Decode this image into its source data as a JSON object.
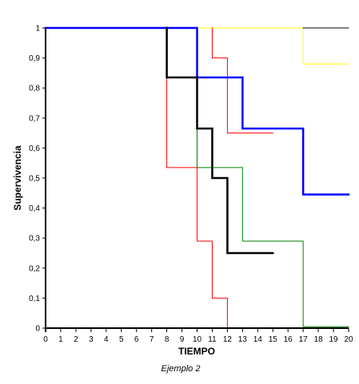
{
  "chart_data": {
    "type": "line",
    "step": true,
    "xlabel": "TIEMPO",
    "ylabel": "Supervivencia",
    "caption": "Ejemplo 2",
    "xlim": [
      0,
      20
    ],
    "ylim": [
      0,
      1
    ],
    "xticks": [
      0,
      1,
      2,
      3,
      4,
      5,
      6,
      7,
      8,
      9,
      10,
      11,
      12,
      13,
      14,
      15,
      16,
      17,
      18,
      19,
      20
    ],
    "yticks": [
      {
        "value": 0,
        "label": "0"
      },
      {
        "value": 0.1,
        "label": "0,1"
      },
      {
        "value": 0.2,
        "label": "0,2"
      },
      {
        "value": 0.3,
        "label": "0,3"
      },
      {
        "value": 0.4,
        "label": "0,4"
      },
      {
        "value": 0.5,
        "label": "0,5"
      },
      {
        "value": 0.6,
        "label": "0,6"
      },
      {
        "value": 0.7,
        "label": "0,7"
      },
      {
        "value": 0.8,
        "label": "0,8"
      },
      {
        "value": 0.9,
        "label": "0,9"
      },
      {
        "value": 1,
        "label": "1"
      }
    ],
    "grid": false,
    "legend": "none",
    "series": [
      {
        "color": "#ffff00",
        "width": 1,
        "points": [
          [
            0,
            1
          ],
          [
            17,
            1
          ],
          [
            17,
            0.88
          ],
          [
            20,
            0.88
          ]
        ]
      },
      {
        "color": "#000000",
        "width": 1,
        "points": [
          [
            17,
            1
          ],
          [
            20,
            1
          ]
        ]
      },
      {
        "color": "#008000",
        "width": 1,
        "points": [
          [
            8,
            1
          ],
          [
            10,
            1
          ],
          [
            10,
            0.535
          ],
          [
            13,
            0.535
          ],
          [
            13,
            0.29
          ],
          [
            17,
            0.29
          ],
          [
            17,
            0.005
          ],
          [
            20,
            0.005
          ]
        ]
      },
      {
        "color": "#ff0000",
        "width": 1,
        "points": [
          [
            8,
            1
          ],
          [
            8,
            0.535
          ],
          [
            10,
            0.535
          ],
          [
            10,
            0.29
          ],
          [
            11,
            0.29
          ],
          [
            11,
            0.1
          ],
          [
            12,
            0.1
          ],
          [
            12,
            0
          ],
          [
            15,
            0
          ]
        ]
      },
      {
        "color": "#ff0000",
        "width": 1,
        "points": [
          [
            11,
            1
          ],
          [
            11,
            0.9
          ],
          [
            12,
            0.9
          ],
          [
            12,
            0.65
          ],
          [
            15,
            0.65
          ]
        ]
      },
      {
        "color": "#0000ff",
        "width": 2.5,
        "points": [
          [
            0,
            1
          ],
          [
            10,
            1
          ],
          [
            10,
            0.835
          ],
          [
            13,
            0.835
          ],
          [
            13,
            0.665
          ],
          [
            17,
            0.665
          ],
          [
            17,
            0.445
          ],
          [
            20,
            0.445
          ]
        ]
      },
      {
        "color": "#000000",
        "width": 2.5,
        "points": [
          [
            8,
            1
          ],
          [
            8,
            0.835
          ],
          [
            10,
            0.835
          ],
          [
            10,
            0.665
          ],
          [
            11,
            0.665
          ],
          [
            11,
            0.5
          ],
          [
            12,
            0.5
          ],
          [
            12,
            0.25
          ],
          [
            15,
            0.25
          ]
        ]
      }
    ]
  }
}
